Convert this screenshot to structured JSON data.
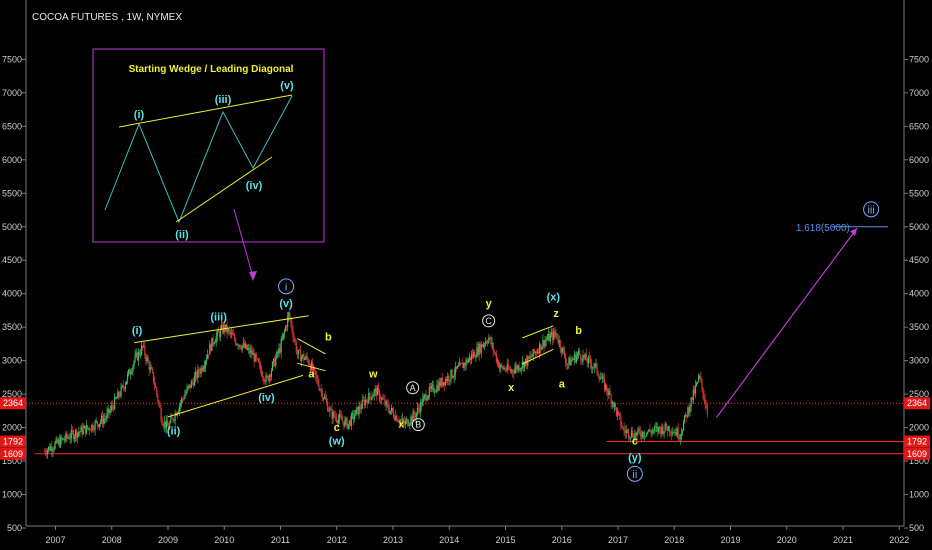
{
  "title": "COCOA FUTURES , 1W, NYMEX",
  "colors": {
    "background": "#000000",
    "candle_up": "#3fbf5f",
    "candle_down": "#d83a3a",
    "wave_cyan": "#5fe0e8",
    "wave_yellow": "#f4ee3a",
    "support_red": "#ff2a2a",
    "projection": "#c23ad6",
    "inset_border": "#c23ad6",
    "fib": "#5b8df0"
  },
  "axis": {
    "y_ticks": [
      "500",
      "1000",
      "1500",
      "2000",
      "2500",
      "3000",
      "3500",
      "4000",
      "4500",
      "5000",
      "5500",
      "6000",
      "6500",
      "7000",
      "7500"
    ],
    "x_ticks": [
      "2007",
      "2008",
      "2009",
      "2010",
      "2011",
      "2012",
      "2013",
      "2014",
      "2015",
      "2016",
      "2017",
      "2018",
      "2019",
      "2020",
      "2021",
      "2022"
    ]
  },
  "price_tags": [
    {
      "text": "2364",
      "value": 2364
    },
    {
      "text": "1792",
      "value": 1792
    },
    {
      "text": "1609",
      "value": 1609
    }
  ],
  "inset": {
    "title": "Starting Wedge / Leading Diagonal",
    "labels": [
      "(i)",
      "(ii)",
      "(iii)",
      "(iv)",
      "(v)"
    ]
  },
  "wave_labels": {
    "cyan": [
      "(i)",
      "(ii)",
      "(iii)",
      "(iv)",
      "(v)",
      "(w)",
      "(x)",
      "(y)"
    ],
    "yellow": [
      "a",
      "b",
      "c",
      "w",
      "x",
      "y",
      "x",
      "z",
      "a",
      "b",
      "c"
    ],
    "circled_white": [
      "A",
      "B",
      "C"
    ],
    "circled_blue": [
      "i",
      "ii",
      "iii"
    ]
  },
  "fib_label": "1.618(5000)",
  "chart_data": {
    "type": "line",
    "title": "COCOA FUTURES , 1W, NYMEX",
    "xlabel": "",
    "ylabel": "",
    "xlim": [
      2006.6,
      2022.0
    ],
    "ylim": [
      0,
      7900
    ],
    "support_levels": [
      2364,
      1792,
      1609
    ],
    "fib_target": 5000,
    "series": [
      {
        "name": "",
        "x": [
          2006.8,
          2007.0,
          2007.3,
          2007.6,
          2007.9,
          2008.2,
          2008.4,
          2008.55,
          2008.75,
          2008.9,
          2009.0,
          2009.3,
          2009.6,
          2009.8,
          2010.0,
          2010.2,
          2010.5,
          2010.75,
          2011.0,
          2011.15,
          2011.3,
          2011.5,
          2011.7,
          2011.9,
          2012.2,
          2012.5,
          2012.7,
          2012.9,
          2013.2,
          2013.4,
          2013.6,
          2013.9,
          2014.2,
          2014.5,
          2014.7,
          2014.9,
          2015.1,
          2015.4,
          2015.7,
          2015.9,
          2016.1,
          2016.3,
          2016.6,
          2016.9,
          2017.1,
          2017.3,
          2017.6,
          2017.9,
          2018.1,
          2018.3,
          2018.45,
          2018.6
        ],
        "y": [
          1650,
          1750,
          1900,
          2000,
          2150,
          2600,
          3000,
          3200,
          2700,
          2100,
          2000,
          2500,
          2900,
          3300,
          3500,
          3300,
          3100,
          2700,
          3200,
          3700,
          3100,
          3000,
          2600,
          2200,
          2050,
          2400,
          2550,
          2300,
          2050,
          2200,
          2500,
          2700,
          2900,
          3150,
          3350,
          2900,
          2850,
          3000,
          3300,
          3400,
          2950,
          3100,
          2900,
          2400,
          1950,
          1900,
          1950,
          2000,
          1900,
          2400,
          2750,
          2200
        ]
      }
    ],
    "annotations": [
      {
        "text": "(i)",
        "x": 2008.45,
        "y": 3400
      },
      {
        "text": "(ii)",
        "x": 2009.1,
        "y": 1900
      },
      {
        "text": "(iii)",
        "x": 2009.9,
        "y": 3600
      },
      {
        "text": "(iv)",
        "x": 2010.75,
        "y": 2400
      },
      {
        "text": "(v)",
        "x": 2011.1,
        "y": 3800
      },
      {
        "text": "i",
        "x": 2011.1,
        "y": 4050
      },
      {
        "text": "a",
        "x": 2011.55,
        "y": 2750
      },
      {
        "text": "b",
        "x": 2011.85,
        "y": 3300
      },
      {
        "text": "c",
        "x": 2012.0,
        "y": 1950
      },
      {
        "text": "(w)",
        "x": 2012.0,
        "y": 1750
      },
      {
        "text": "w",
        "x": 2012.65,
        "y": 2750
      },
      {
        "text": "x",
        "x": 2013.15,
        "y": 2000
      },
      {
        "text": "A",
        "x": 2013.35,
        "y": 2550
      },
      {
        "text": "B",
        "x": 2013.45,
        "y": 2000
      },
      {
        "text": "y",
        "x": 2014.7,
        "y": 3800
      },
      {
        "text": "C",
        "x": 2014.7,
        "y": 3550
      },
      {
        "text": "x",
        "x": 2015.1,
        "y": 2550
      },
      {
        "text": "(x)",
        "x": 2015.85,
        "y": 3900
      },
      {
        "text": "z",
        "x": 2015.9,
        "y": 3650
      },
      {
        "text": "a",
        "x": 2016.0,
        "y": 2600
      },
      {
        "text": "b",
        "x": 2016.3,
        "y": 3400
      },
      {
        "text": "c",
        "x": 2017.3,
        "y": 1750
      },
      {
        "text": "(y)",
        "x": 2017.3,
        "y": 1500
      },
      {
        "text": "ii",
        "x": 2017.3,
        "y": 1250
      },
      {
        "text": "iii",
        "x": 2021.5,
        "y": 5200
      },
      {
        "text": "1.618(5000)",
        "x": 2020.5,
        "y": 5000
      }
    ]
  }
}
